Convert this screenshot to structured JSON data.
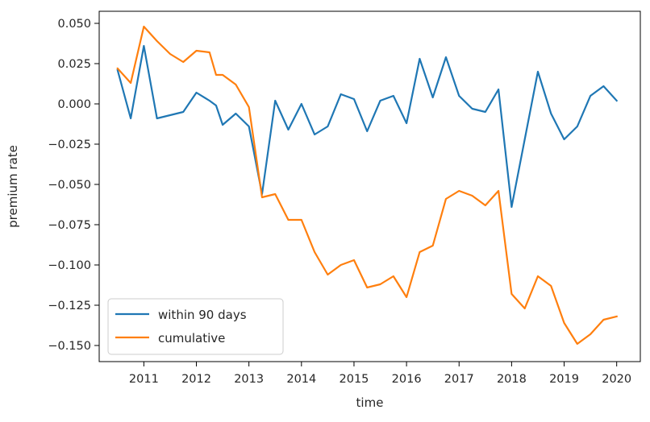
{
  "chart_data": {
    "type": "line",
    "title": "",
    "xlabel": "time",
    "ylabel": "premium rate",
    "xlim": [
      2010.15,
      2020.45
    ],
    "ylim": [
      -0.16,
      0.0575
    ],
    "grid": false,
    "legend": "lower-left",
    "x_ticks": [
      2011,
      2012,
      2013,
      2014,
      2015,
      2016,
      2017,
      2018,
      2019,
      2020
    ],
    "x_tick_labels": [
      "2011",
      "2012",
      "2013",
      "2014",
      "2015",
      "2016",
      "2017",
      "2018",
      "2019",
      "2020"
    ],
    "y_ticks": [
      0.05,
      0.025,
      0.0,
      -0.025,
      -0.05,
      -0.075,
      -0.1,
      -0.125,
      -0.15
    ],
    "y_tick_labels": [
      "0.050",
      "0.025",
      "0.000",
      "−0.025",
      "−0.050",
      "−0.075",
      "−0.100",
      "−0.125",
      "−0.150"
    ],
    "x": [
      2010.5,
      2010.75,
      2011.0,
      2011.25,
      2011.5,
      2011.75,
      2012.0,
      2012.25,
      2012.375,
      2012.5,
      2012.75,
      2013.0,
      2013.25,
      2013.5,
      2013.75,
      2014.0,
      2014.25,
      2014.5,
      2014.75,
      2015.0,
      2015.25,
      2015.5,
      2015.75,
      2016.0,
      2016.25,
      2016.5,
      2016.75,
      2017.0,
      2017.25,
      2017.5,
      2017.75,
      2018.0,
      2018.25,
      2018.5,
      2018.75,
      2019.0,
      2019.25,
      2019.5,
      2019.75,
      2020.0
    ],
    "series": [
      {
        "name": "within 90 days",
        "color": "#1f77b4",
        "values": [
          0.021,
          -0.009,
          0.036,
          -0.009,
          -0.007,
          -0.005,
          0.007,
          0.002,
          -0.001,
          -0.013,
          -0.006,
          -0.014,
          -0.056,
          0.002,
          -0.016,
          0.0,
          -0.019,
          -0.014,
          0.006,
          0.003,
          -0.017,
          0.002,
          0.005,
          -0.012,
          0.028,
          0.004,
          0.029,
          0.005,
          -0.003,
          -0.005,
          0.009,
          -0.064,
          -0.022,
          0.02,
          -0.006,
          -0.022,
          -0.014,
          0.005,
          0.011,
          0.002
        ]
      },
      {
        "name": "cumulative",
        "color": "#ff7f0e",
        "values": [
          0.022,
          0.013,
          0.048,
          0.039,
          0.031,
          0.026,
          0.033,
          0.032,
          0.018,
          0.018,
          0.012,
          -0.002,
          -0.058,
          -0.056,
          -0.072,
          -0.072,
          -0.092,
          -0.106,
          -0.1,
          -0.097,
          -0.114,
          -0.112,
          -0.107,
          -0.12,
          -0.092,
          -0.088,
          -0.059,
          -0.054,
          -0.057,
          -0.063,
          -0.054,
          -0.118,
          -0.127,
          -0.107,
          -0.113,
          -0.136,
          -0.149,
          -0.143,
          -0.134,
          -0.132
        ]
      }
    ]
  }
}
